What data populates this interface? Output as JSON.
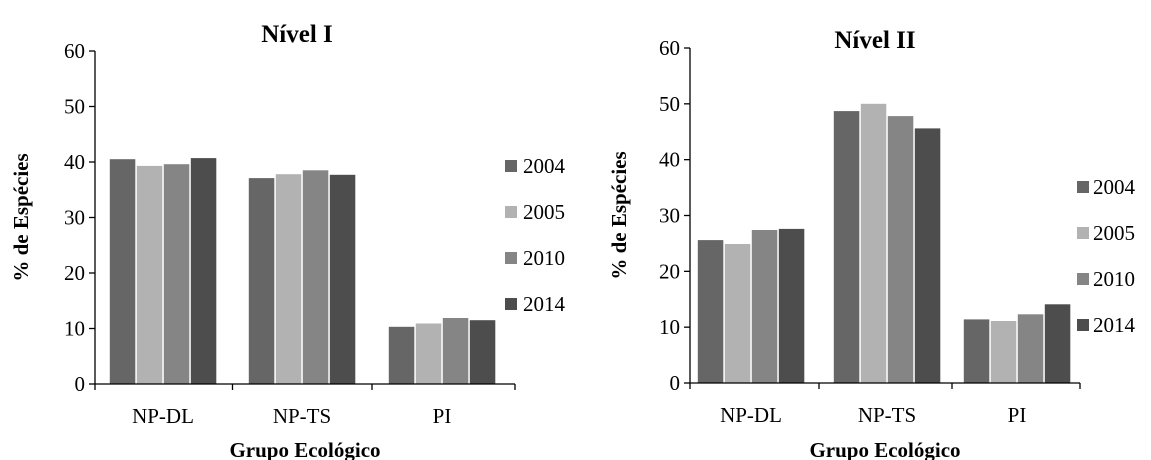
{
  "chart_data": [
    {
      "type": "bar",
      "title": "Nível I",
      "xlabel": "Grupo Ecológico",
      "ylabel": "% de Espécies",
      "ylim": [
        0,
        60
      ],
      "yticks": [
        0,
        10,
        20,
        30,
        40,
        50,
        60
      ],
      "categories": [
        "NP-DL",
        "NP-TS",
        "PI"
      ],
      "series": [
        {
          "name": "2004",
          "color": "#666666",
          "values": [
            40.5,
            37.1,
            10.3
          ]
        },
        {
          "name": "2005",
          "color": "#b2b2b2",
          "values": [
            39.3,
            37.8,
            10.9
          ]
        },
        {
          "name": "2010",
          "color": "#858585",
          "values": [
            39.6,
            38.5,
            11.9
          ]
        },
        {
          "name": "2014",
          "color": "#4d4d4d",
          "values": [
            40.7,
            37.7,
            11.5
          ]
        }
      ],
      "legend_position": "right",
      "grid": false
    },
    {
      "type": "bar",
      "title": "Nível II",
      "xlabel": "Grupo Ecológico",
      "ylabel": "% de Espécies",
      "ylim": [
        0,
        60
      ],
      "yticks": [
        0,
        10,
        20,
        30,
        40,
        50,
        60
      ],
      "categories": [
        "NP-DL",
        "NP-TS",
        "PI"
      ],
      "series": [
        {
          "name": "2004",
          "color": "#666666",
          "values": [
            25.6,
            48.7,
            11.4
          ]
        },
        {
          "name": "2005",
          "color": "#b2b2b2",
          "values": [
            24.9,
            50.0,
            11.1
          ]
        },
        {
          "name": "2010",
          "color": "#858585",
          "values": [
            27.4,
            47.8,
            12.3
          ]
        },
        {
          "name": "2014",
          "color": "#4d4d4d",
          "values": [
            27.6,
            45.6,
            14.1
          ]
        }
      ],
      "legend_position": "right",
      "grid": false
    }
  ]
}
